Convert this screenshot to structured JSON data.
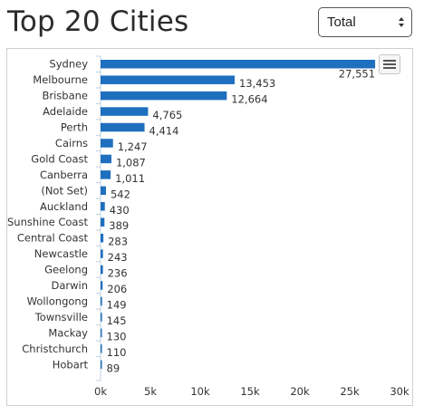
{
  "page": {
    "title": "Top 20 Cities",
    "select_value": "Total"
  },
  "colors": {
    "bar": "#1f6fbf",
    "axis": "#c0d0e0",
    "text": "#333333"
  },
  "icons": {
    "select": "chevron-up-down-icon",
    "menu": "hamburger-menu-icon"
  },
  "chart_data": {
    "type": "bar",
    "orientation": "horizontal",
    "categories": [
      "Sydney",
      "Melbourne",
      "Brisbane",
      "Adelaide",
      "Perth",
      "Cairns",
      "Gold Coast",
      "Canberra",
      "(Not Set)",
      "Auckland",
      "Sunshine Coast",
      "Central Coast",
      "Newcastle",
      "Geelong",
      "Darwin",
      "Wollongong",
      "Townsville",
      "Mackay",
      "Christchurch",
      "Hobart"
    ],
    "values": [
      27551,
      13453,
      12664,
      4765,
      4414,
      1247,
      1087,
      1011,
      542,
      430,
      389,
      283,
      243,
      236,
      206,
      149,
      145,
      130,
      110,
      89
    ],
    "value_labels": [
      "27,551",
      "13,453",
      "12,664",
      "4,765",
      "4,414",
      "1,247",
      "1,087",
      "1,011",
      "542",
      "430",
      "389",
      "283",
      "243",
      "236",
      "206",
      "149",
      "145",
      "130",
      "110",
      "89"
    ],
    "xlim": [
      0,
      30000
    ],
    "xticks": [
      0,
      5000,
      10000,
      15000,
      20000,
      25000,
      30000
    ],
    "xtick_labels": [
      "0k",
      "5k",
      "10k",
      "15k",
      "20k",
      "25k",
      "30k"
    ],
    "grid": false,
    "legend": "none"
  }
}
